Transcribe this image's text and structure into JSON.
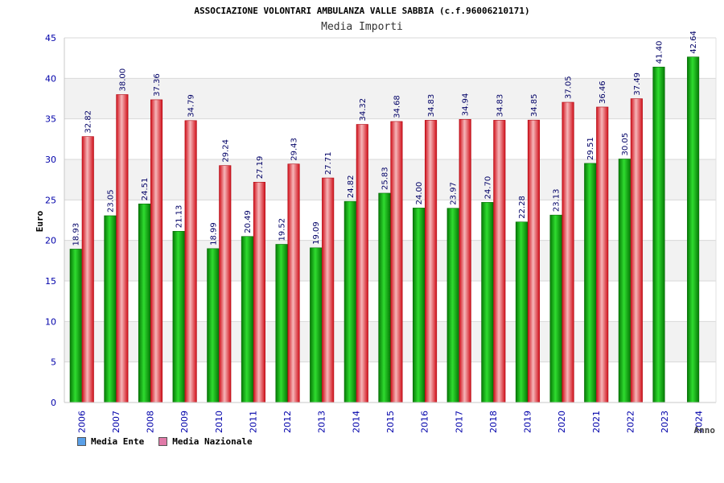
{
  "chart_data": {
    "type": "bar",
    "title": "ASSOCIAZIONE VOLONTARI AMBULANZA VALLE SABBIA (c.f.96006210171)",
    "subtitle": "Media Importi",
    "xlabel": "Anno",
    "ylabel": "Euro",
    "ylim": [
      0,
      45
    ],
    "yticks": [
      0,
      5,
      10,
      15,
      20,
      25,
      30,
      35,
      40,
      45
    ],
    "grid": true,
    "categories": [
      "2006",
      "2007",
      "2008",
      "2009",
      "2010",
      "2011",
      "2012",
      "2013",
      "2014",
      "2015",
      "2016",
      "2017",
      "2018",
      "2019",
      "2020",
      "2021",
      "2022",
      "2023",
      "2024"
    ],
    "series": [
      {
        "name": "Media Ente",
        "color": "#0aa10a",
        "values": [
          18.93,
          23.05,
          24.51,
          21.13,
          18.99,
          20.49,
          19.52,
          19.09,
          24.82,
          25.83,
          24.0,
          23.97,
          24.7,
          22.28,
          23.13,
          29.51,
          30.05,
          41.4,
          42.64
        ],
        "labels": [
          "18.93",
          "23.05",
          "24.51",
          "21.13",
          "18.99",
          "20.49",
          "19.52",
          "19.09",
          "24.82",
          "25.83",
          "24.00",
          "23.97",
          "24.70",
          "22.28",
          "23.13",
          "29.51",
          "30.05",
          "41.40",
          "42.64"
        ]
      },
      {
        "name": "Media Nazionale",
        "color": "#e0202a",
        "values": [
          32.82,
          38.0,
          37.36,
          34.79,
          29.24,
          27.19,
          29.43,
          27.71,
          34.32,
          34.68,
          34.83,
          34.94,
          34.83,
          34.85,
          37.05,
          36.46,
          37.49,
          null,
          null
        ],
        "labels": [
          "32.82",
          "38.00",
          "37.36",
          "34.79",
          "29.24",
          "27.19",
          "29.43",
          "27.71",
          "34.32",
          "34.68",
          "34.83",
          "34.94",
          "34.83",
          "34.85",
          "37.05",
          "36.46",
          "37.49",
          "",
          ""
        ]
      }
    ],
    "legend": {
      "position": "bottom-left",
      "items": [
        {
          "label": "Media Ente",
          "swatch_color": "#5aa0e8"
        },
        {
          "label": "Media Nazionale",
          "swatch_color": "#e07aa8"
        }
      ]
    },
    "colors": {
      "axis_text": "#0000aa",
      "value_label": "#000066",
      "band_alt": "#f2f2f2",
      "grid": "#d8d8d8"
    }
  }
}
